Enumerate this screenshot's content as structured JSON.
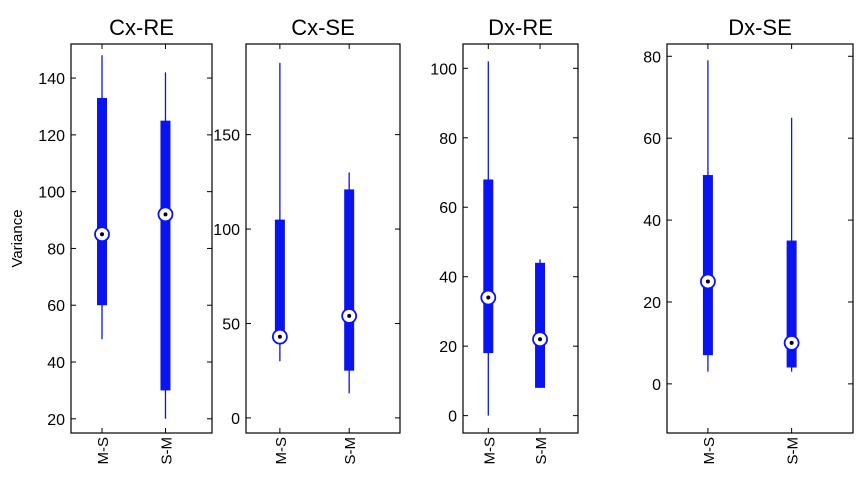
{
  "colors": {
    "box": "#0a14f0",
    "median_ring": "#0a14f0",
    "median_fill": "#ffffff",
    "median_dot": "#000000",
    "axis": "#000000"
  },
  "chart_data": [
    {
      "type": "box",
      "title": "Cx-RE",
      "ylabel": "Variance",
      "categories": [
        "M-S",
        "S-M"
      ],
      "ylim": [
        15,
        152
      ],
      "yticks": [
        20,
        40,
        60,
        80,
        100,
        120,
        140
      ],
      "ytick_labels": [
        "20",
        "40",
        "60",
        "80",
        "100",
        "120",
        "140"
      ],
      "boxes": [
        {
          "category": "M-S",
          "whisker_low": 48,
          "q1": 60,
          "median": 85,
          "q3": 133,
          "whisker_high": 148
        },
        {
          "category": "S-M",
          "whisker_low": 20,
          "q1": 30,
          "median": 92,
          "q3": 125,
          "whisker_high": 142
        }
      ]
    },
    {
      "type": "box",
      "title": "Cx-SE",
      "ylabel": "",
      "categories": [
        "M-S",
        "S-M"
      ],
      "ylim": [
        -8,
        198
      ],
      "yticks": [
        0,
        50,
        100,
        150
      ],
      "ytick_labels": [
        "0",
        "50",
        "100",
        "150"
      ],
      "boxes": [
        {
          "category": "M-S",
          "whisker_low": 30,
          "q1": 40,
          "median": 43,
          "q3": 105,
          "whisker_high": 188
        },
        {
          "category": "S-M",
          "whisker_low": 13,
          "q1": 25,
          "median": 54,
          "q3": 121,
          "whisker_high": 130
        }
      ]
    },
    {
      "type": "box",
      "title": "Dx-RE",
      "ylabel": "",
      "categories": [
        "M-S",
        "S-M"
      ],
      "ylim": [
        -5,
        107
      ],
      "yticks": [
        0,
        20,
        40,
        60,
        80,
        100
      ],
      "ytick_labels": [
        "0",
        "20",
        "40",
        "60",
        "80",
        "100"
      ],
      "boxes": [
        {
          "category": "M-S",
          "whisker_low": 0,
          "q1": 18,
          "median": 34,
          "q3": 68,
          "whisker_high": 102
        },
        {
          "category": "S-M",
          "whisker_low": 8,
          "q1": 8,
          "median": 22,
          "q3": 44,
          "whisker_high": 45
        }
      ]
    },
    {
      "type": "box",
      "title": "Dx-SE",
      "ylabel": "",
      "categories": [
        "M-S",
        "S-M"
      ],
      "ylim": [
        -12,
        83
      ],
      "yticks": [
        0,
        20,
        40,
        60,
        80
      ],
      "ytick_labels": [
        "0",
        "20",
        "40",
        "60",
        "80"
      ],
      "boxes": [
        {
          "category": "M-S",
          "whisker_low": 3,
          "q1": 7,
          "median": 25,
          "q3": 51,
          "whisker_high": 79
        },
        {
          "category": "S-M",
          "whisker_low": 3,
          "q1": 4,
          "median": 10,
          "q3": 35,
          "whisker_high": 65
        }
      ]
    }
  ]
}
